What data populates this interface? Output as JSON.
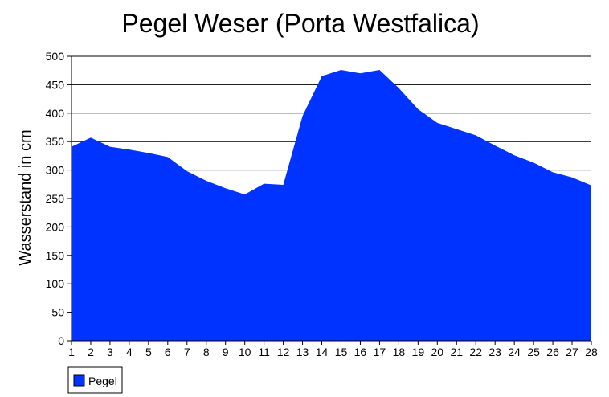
{
  "chart_data": {
    "type": "area",
    "title": "Pegel Weser (Porta Westfalica)",
    "xlabel": "",
    "ylabel": "Wasserstand in cm",
    "x": [
      "1",
      "2",
      "3",
      "4",
      "5",
      "6",
      "7",
      "8",
      "9",
      "10",
      "11",
      "12",
      "13",
      "14",
      "15",
      "16",
      "17",
      "18",
      "19",
      "20",
      "21",
      "22",
      "23",
      "24",
      "25",
      "26",
      "27",
      "28"
    ],
    "ylim": [
      0,
      500
    ],
    "yticks": [
      0,
      50,
      100,
      150,
      200,
      250,
      300,
      350,
      400,
      450,
      500
    ],
    "grid": true,
    "legend_position": "bottom-left",
    "series": [
      {
        "name": "Pegel",
        "color": "#0033ff",
        "values": [
          341,
          357,
          341,
          336,
          330,
          323,
          298,
          281,
          268,
          257,
          276,
          274,
          395,
          465,
          476,
          470,
          476,
          444,
          407,
          383,
          372,
          361,
          343,
          326,
          313,
          296,
          287,
          273
        ]
      }
    ]
  }
}
